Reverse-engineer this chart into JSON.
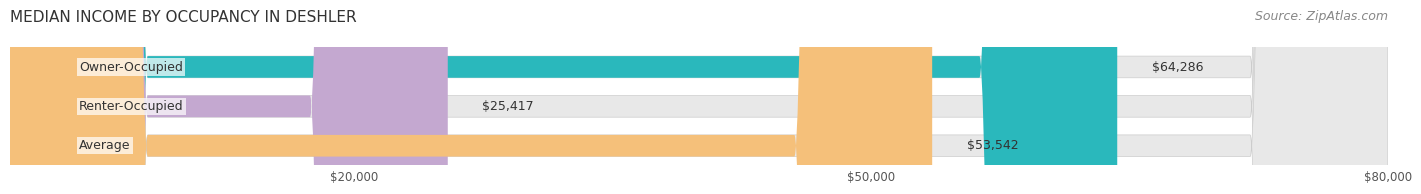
{
  "title": "MEDIAN INCOME BY OCCUPANCY IN DESHLER",
  "source": "Source: ZipAtlas.com",
  "categories": [
    "Owner-Occupied",
    "Renter-Occupied",
    "Average"
  ],
  "values": [
    64286,
    25417,
    53542
  ],
  "labels": [
    "$64,286",
    "$25,417",
    "$53,542"
  ],
  "bar_colors": [
    "#2ab8bc",
    "#c4a8d0",
    "#f5c07a"
  ],
  "bar_edge_colors": [
    "#2ab8bc",
    "#c4a8d0",
    "#f5c07a"
  ],
  "background_color": "#ffffff",
  "bar_bg_color": "#e8e8e8",
  "xlim": [
    0,
    80000
  ],
  "xticks": [
    20000,
    50000,
    80000
  ],
  "xtick_labels": [
    "$20,000",
    "$50,000",
    "$80,000"
  ],
  "title_fontsize": 11,
  "source_fontsize": 9,
  "label_fontsize": 9,
  "category_fontsize": 9,
  "bar_height": 0.55,
  "figsize": [
    14.06,
    1.97
  ],
  "dpi": 100
}
